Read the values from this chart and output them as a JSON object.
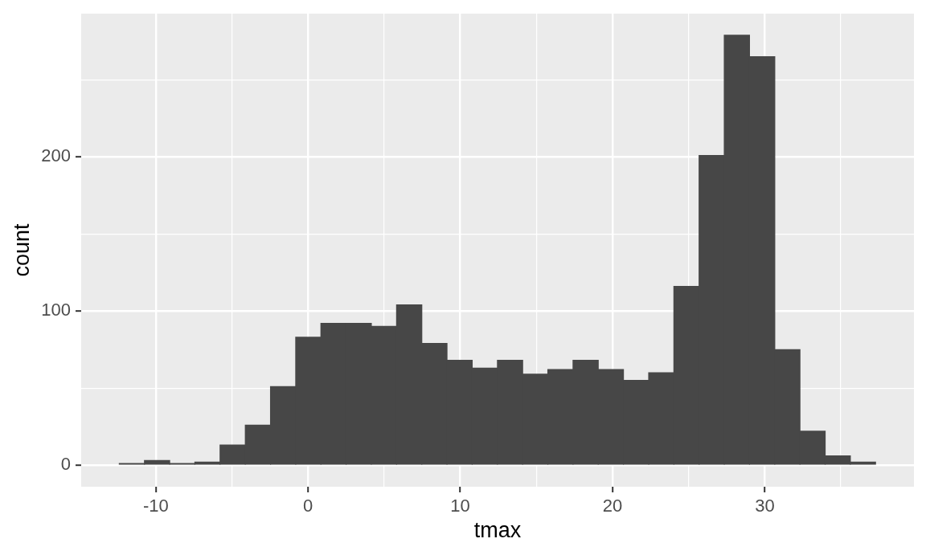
{
  "chart_data": {
    "type": "histogram",
    "xlabel": "tmax",
    "ylabel": "count",
    "bins": [
      -12.4,
      -10.74,
      -9.09,
      -7.43,
      -5.78,
      -4.12,
      -2.46,
      -0.81,
      0.85,
      2.5,
      4.16,
      5.82,
      7.47,
      9.13,
      10.78,
      12.44,
      14.1,
      15.75,
      17.41,
      19.06,
      20.72,
      22.38,
      24.03,
      25.69,
      27.34,
      29.0,
      30.66,
      32.31,
      33.97,
      35.62,
      37.28
    ],
    "values": [
      1,
      3,
      1,
      2,
      13,
      26,
      51,
      83,
      92,
      92,
      90,
      104,
      79,
      68,
      63,
      68,
      59,
      62,
      68,
      62,
      55,
      60,
      116,
      201,
      279,
      265,
      75,
      22,
      6,
      2
    ],
    "color": "#474747",
    "xlim": [
      -14.9,
      39.8
    ],
    "ylim": [
      -14,
      293
    ],
    "xticks": [
      -10,
      {
        "value": -5,
        "label": null
      },
      0,
      {
        "value": 5,
        "label": null
      },
      10,
      {
        "value": 15,
        "label": null
      },
      20,
      {
        "value": 25,
        "label": null
      },
      30,
      {
        "value": 35,
        "label": null
      }
    ],
    "yticks": [
      0,
      {
        "value": 50,
        "label": null
      },
      100,
      {
        "value": 150,
        "label": null
      },
      200,
      {
        "value": 250,
        "label": null
      }
    ],
    "grid": true
  }
}
